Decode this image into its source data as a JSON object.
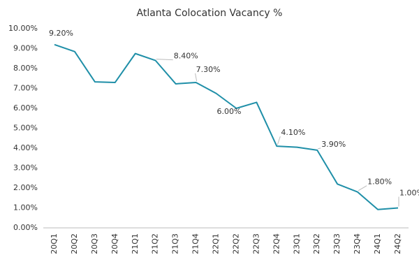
{
  "chart_data": {
    "type": "line",
    "title": "Atlanta Colocation Vacancy %",
    "categories": [
      "20Q1",
      "20Q2",
      "20Q3",
      "20Q4",
      "21Q1",
      "21Q2",
      "21Q3",
      "21Q4",
      "22Q1",
      "22Q2",
      "22Q3",
      "22Q4",
      "23Q1",
      "23Q2",
      "23Q3",
      "23Q4",
      "24Q1",
      "24Q2"
    ],
    "series": [
      {
        "name": "Atlanta Colocation Vacancy %",
        "color": "#1f8fa8",
        "values": [
          9.2,
          8.85,
          7.33,
          7.3,
          8.75,
          8.4,
          7.23,
          7.3,
          6.75,
          6.0,
          6.3,
          4.1,
          4.05,
          3.9,
          2.2,
          1.8,
          0.92,
          1.0
        ],
        "value_labels": [
          "9.20%",
          null,
          null,
          null,
          null,
          "8.40%",
          null,
          "7.30%",
          null,
          "6.00%",
          null,
          "4.10%",
          null,
          "3.90%",
          null,
          "1.80%",
          null,
          "1.00%"
        ]
      }
    ],
    "ylim": [
      0,
      10
    ],
    "yticks": [
      {
        "value": 0,
        "label": "0.00%"
      },
      {
        "value": 1,
        "label": "1.00%"
      },
      {
        "value": 2,
        "label": "2.00%"
      },
      {
        "value": 3,
        "label": "3.00%"
      },
      {
        "value": 4,
        "label": "4.00%"
      },
      {
        "value": 5,
        "label": "5.00%"
      },
      {
        "value": 6,
        "label": "6.00%"
      },
      {
        "value": 7,
        "label": "7.00%"
      },
      {
        "value": 8,
        "label": "8.00%"
      },
      {
        "value": 9,
        "label": "9.00%"
      },
      {
        "value": 10,
        "label": "10.00%"
      }
    ],
    "grid": false
  }
}
